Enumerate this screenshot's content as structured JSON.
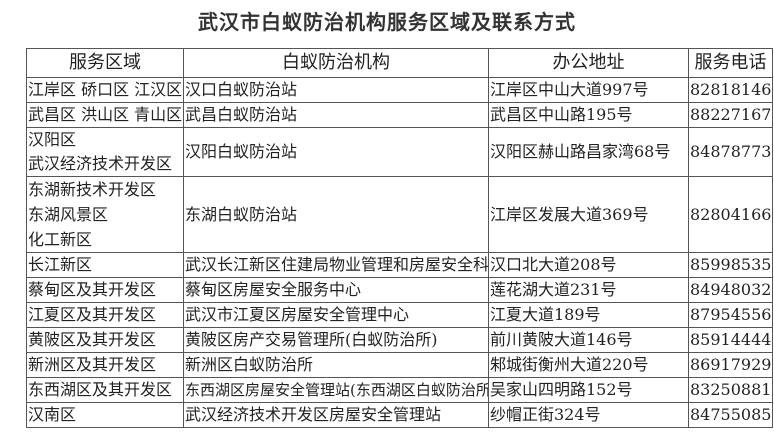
{
  "title": "武汉市白蚁防治机构服务区域及联系方式",
  "table": {
    "headers": [
      "服务区域",
      "白蚁防治机构",
      "办公地址",
      "服务电话"
    ],
    "rows": [
      {
        "area": [
          "江岸区 硚口区 江汉区"
        ],
        "org": "汉口白蚁防治站",
        "address": "江岸区中山大道997号",
        "phone": "82818146"
      },
      {
        "area": [
          "武昌区 洪山区 青山区"
        ],
        "org": "武昌白蚁防治站",
        "address": "武昌区中山路195号",
        "phone": "88227167"
      },
      {
        "area": [
          "汉阳区",
          "武汉经济技术开发区"
        ],
        "org": "汉阳白蚁防治站",
        "address": "汉阳区赫山路昌家湾68号",
        "phone": "84878773"
      },
      {
        "area": [
          "东湖新技术开发区",
          "东湖风景区",
          "化工新区"
        ],
        "org": "东湖白蚁防治站",
        "address": "江岸区发展大道369号",
        "phone": "82804166"
      },
      {
        "area": [
          "长江新区"
        ],
        "org": "武汉长江新区住建局物业管理和房屋安全科",
        "address": "汉口北大道208号",
        "phone": "85998535"
      },
      {
        "area": [
          "蔡甸区及其开发区"
        ],
        "org": "蔡甸区房屋安全服务中心",
        "address": "莲花湖大道231号",
        "phone": "84948032"
      },
      {
        "area": [
          "江夏区及其开发区"
        ],
        "org": "武汉市江夏区房屋安全管理中心",
        "address": "江夏大道189号",
        "phone": "87954556"
      },
      {
        "area": [
          "黄陂区及其开发区"
        ],
        "org": "黄陂区房产交易管理所(白蚁防治所)",
        "address": "前川黄陂大道146号",
        "phone": "85914444"
      },
      {
        "area": [
          "新洲区及其开发区"
        ],
        "org": "新洲区白蚁防治所",
        "address": "邾城街衡州大道220号",
        "phone": "86917929"
      },
      {
        "area": [
          "东西湖区及其开发区"
        ],
        "org": "东西湖区房屋安全管理站(东西湖区白蚁防治所)",
        "address": "吴家山四明路152号",
        "phone": "83250881"
      },
      {
        "area": [
          "汉南区"
        ],
        "org": "武汉经济技术开发区房屋安全管理站",
        "address": "纱帽正街324号",
        "phone": "84755085"
      }
    ]
  }
}
